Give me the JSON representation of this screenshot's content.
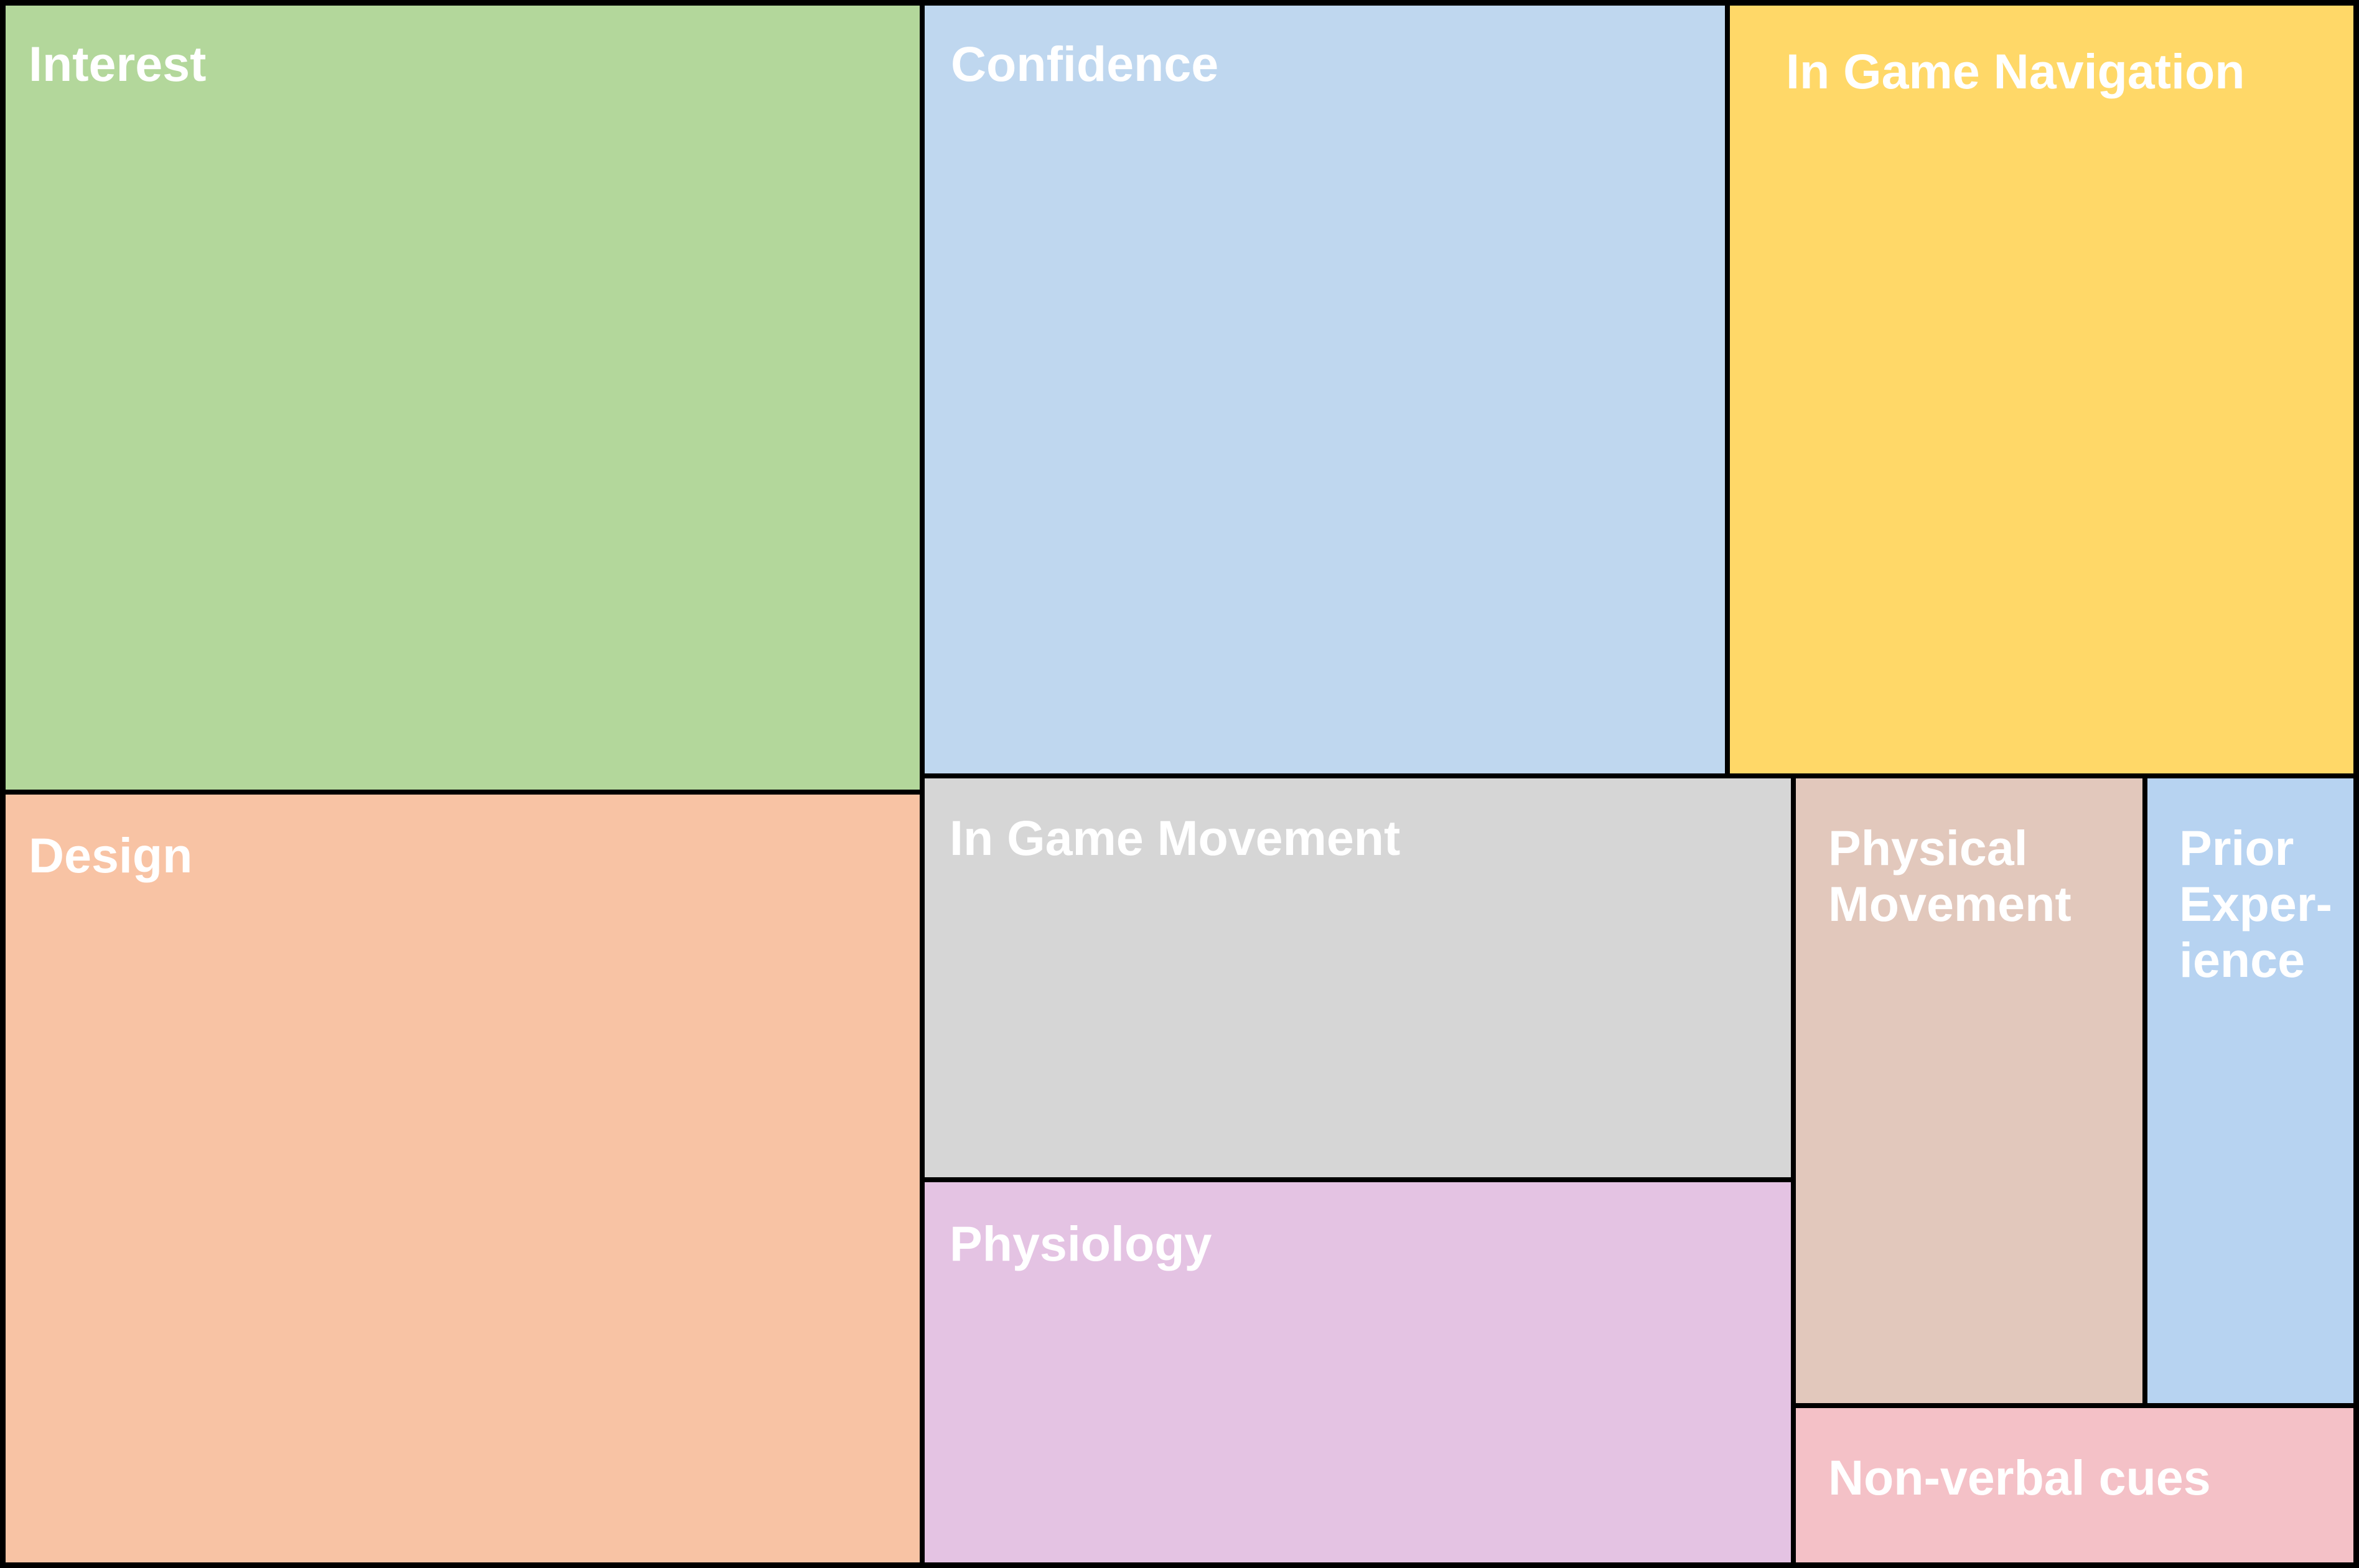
{
  "chart_data": {
    "type": "treemap",
    "title": "",
    "border_color": "#000000",
    "label_color": "#ffffff",
    "items": [
      {
        "label": "Interest",
        "value": 22.7,
        "color": "#B3D79B"
      },
      {
        "label": "Design",
        "value": 22.5,
        "color": "#F8C3A4"
      },
      {
        "label": "Confidence",
        "value": 17.2,
        "color": "#BFD7EF"
      },
      {
        "label": "In Game Navigation",
        "value": 13.5,
        "color": "#FFD868"
      },
      {
        "label": "In Game Movement",
        "value": 9.4,
        "color": "#D6D6D6"
      },
      {
        "label": "Physiology",
        "value": 8.9,
        "color": "#E4C3E3"
      },
      {
        "label": "Physical Movement",
        "value": 6.2,
        "color": "#E2C8BC"
      },
      {
        "label": "Prior Experience",
        "display_lines": [
          "Prior",
          "Exper-",
          "ience"
        ],
        "value": 4.1,
        "color": "#B7D3F1"
      },
      {
        "label": "Non-verbal cues",
        "value": 2.8,
        "color": "#F4C1C7"
      }
    ]
  }
}
